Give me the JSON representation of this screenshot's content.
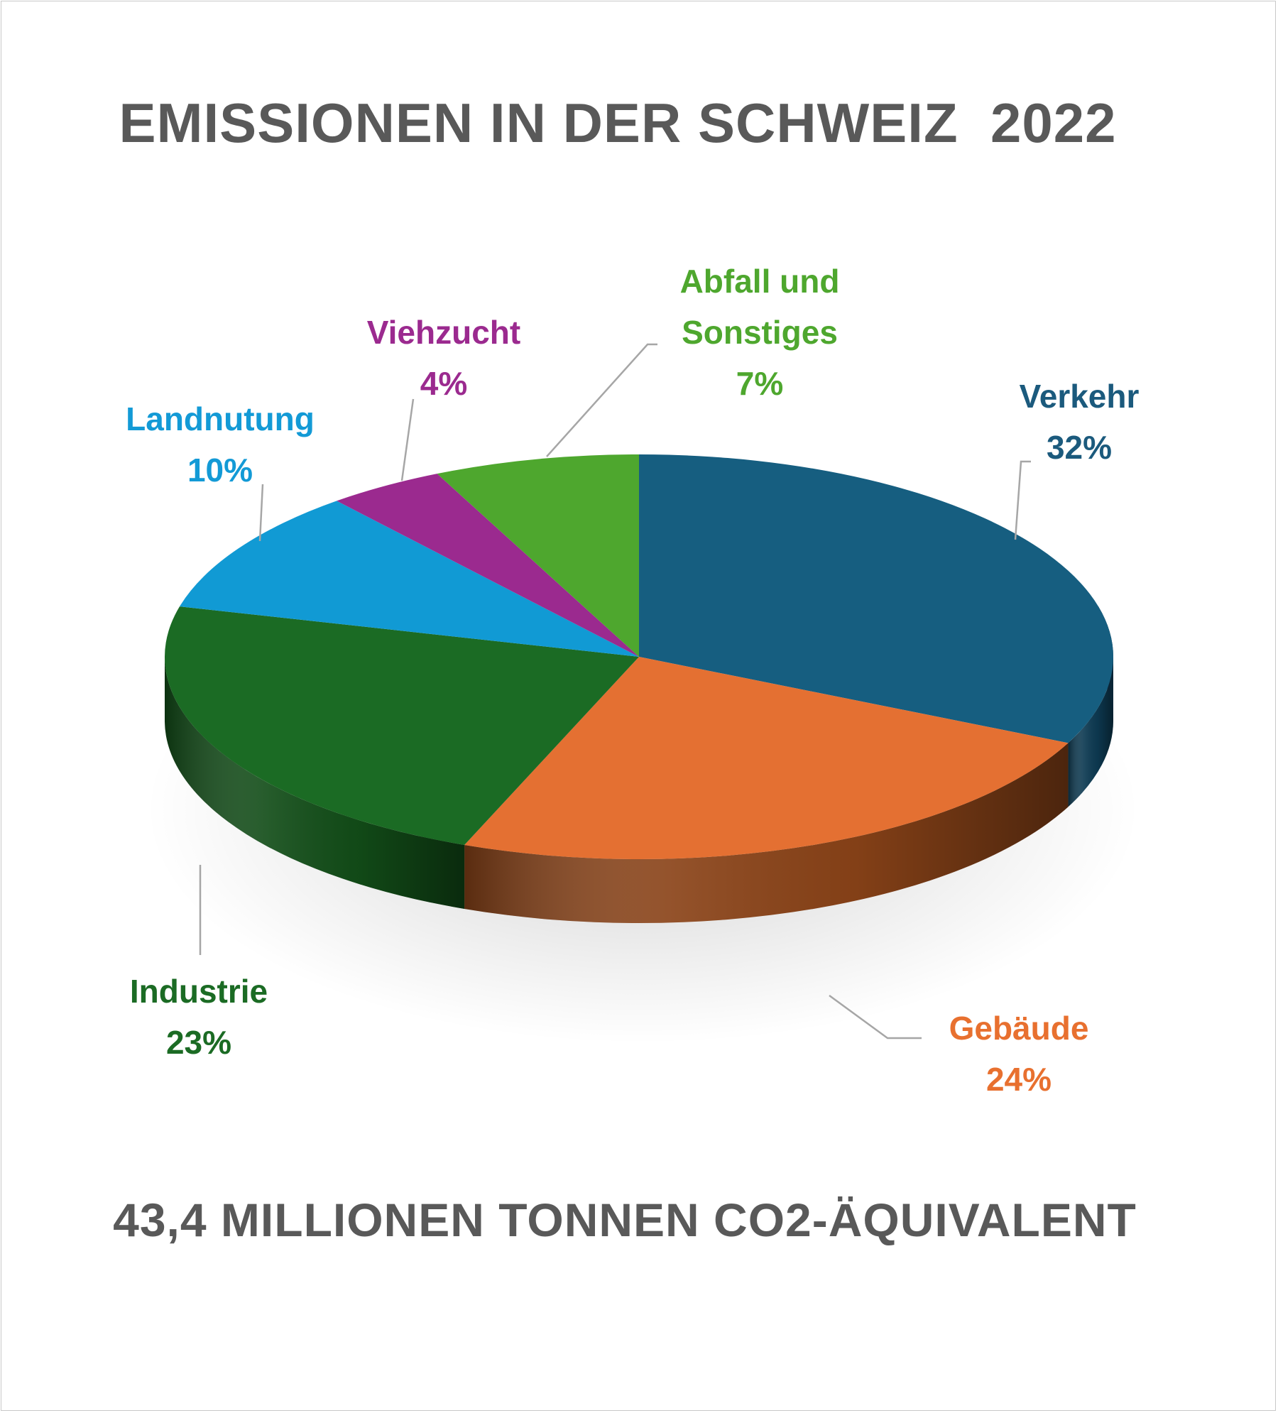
{
  "chart_data": {
    "type": "pie",
    "title": "EMISSIONEN IN DER SCHWEIZ  2022",
    "subtitle": "43,4 MILLIONEN TONNEN CO2-ÄQUIVALENT",
    "slices": [
      {
        "label": "Verkehr",
        "value": 32,
        "value_label": "32%",
        "color": "#165e80",
        "side_color": "#0d3a52"
      },
      {
        "label": "Gebäude",
        "value": 24,
        "value_label": "24%",
        "color": "#e47032",
        "side_color": "#8a4318"
      },
      {
        "label": "Industrie",
        "value": 23,
        "value_label": "23%",
        "color": "#1b6b24",
        "side_color": "#124d18"
      },
      {
        "label": "Landnutung",
        "value": 10,
        "value_label": "10%",
        "color": "#119ad4",
        "side_color": "#0a6a94"
      },
      {
        "label": "Viehzucht",
        "value": 4,
        "value_label": "4%",
        "color": "#9b2a8f",
        "side_color": "#6a1c62"
      },
      {
        "label": "Abfall und Sonstiges",
        "label_lines": [
          "Abfall und",
          "Sonstiges"
        ],
        "value": 7,
        "value_label": "7%",
        "color": "#4ea72e",
        "side_color": "#357520"
      }
    ],
    "label_colors": {
      "Verkehr": "#1b5a7d",
      "Gebäude": "#e8702f",
      "Industrie": "#1b6b24",
      "Landnutung": "#139ad6",
      "Viehzucht": "#9b2a8f",
      "Abfall und Sonstiges": "#4ea72e"
    }
  }
}
